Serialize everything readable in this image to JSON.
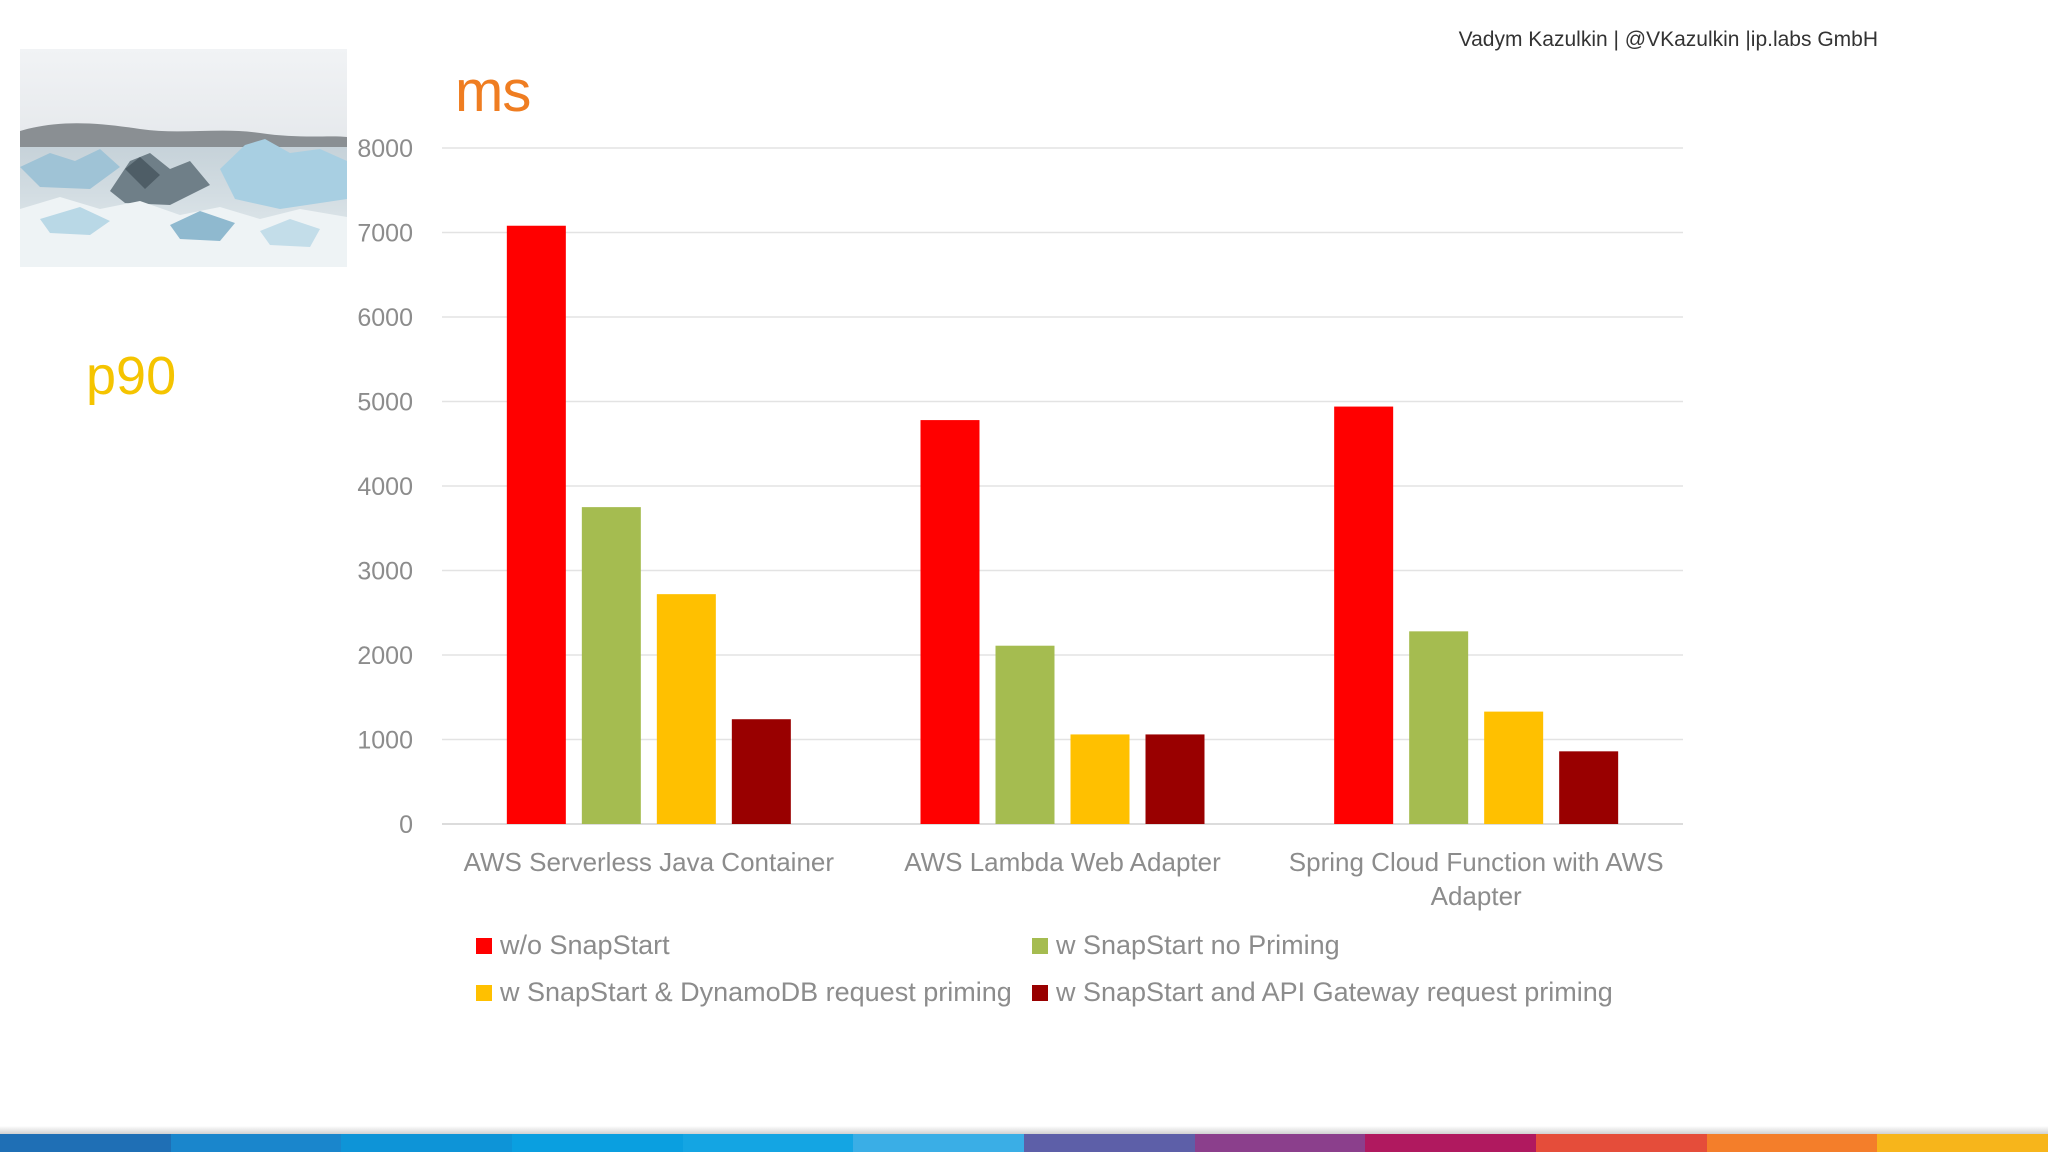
{
  "header": {
    "author": "Vadym Kazulkin | @VKazulkin |ip.labs GmbH"
  },
  "slide": {
    "unit_title": "ms",
    "side_label": "p90"
  },
  "image": {
    "description_icon": "glacier-photo-icon"
  },
  "chart_data": {
    "type": "bar",
    "categories": [
      [
        "AWS Serverless Java Container"
      ],
      [
        "AWS Lambda Web Adapter"
      ],
      [
        "Spring Cloud Function with AWS",
        "Adapter"
      ]
    ],
    "series": [
      {
        "name": "w/o SnapStart",
        "color": "#ff0000",
        "values": [
          7080,
          4780,
          4940
        ]
      },
      {
        "name": "w SnapStart no Priming",
        "color": "#a5bc50",
        "values": [
          3750,
          2110,
          2280
        ]
      },
      {
        "name": "w SnapStart & DynamoDB request priming",
        "color": "#ffc000",
        "values": [
          2720,
          1060,
          1330
        ]
      },
      {
        "name": "w SnapStart and API Gateway request priming",
        "color": "#990000",
        "values": [
          1240,
          1060,
          860
        ]
      }
    ],
    "yticks": [
      "0",
      "1000",
      "2000",
      "3000",
      "4000",
      "5000",
      "6000",
      "7000",
      "8000"
    ],
    "ylim": [
      0,
      8000
    ],
    "grid": true,
    "legend_position": "bottom"
  },
  "footer": {
    "stripe_colors": [
      "#1f6fb5",
      "#1a86cc",
      "#0e94d7",
      "#0a9fe0",
      "#14a5e3",
      "#3aaee6",
      "#5d5fa8",
      "#8b3f8c",
      "#b0195f",
      "#e54d3a",
      "#f47e2a",
      "#f7b51b"
    ]
  }
}
